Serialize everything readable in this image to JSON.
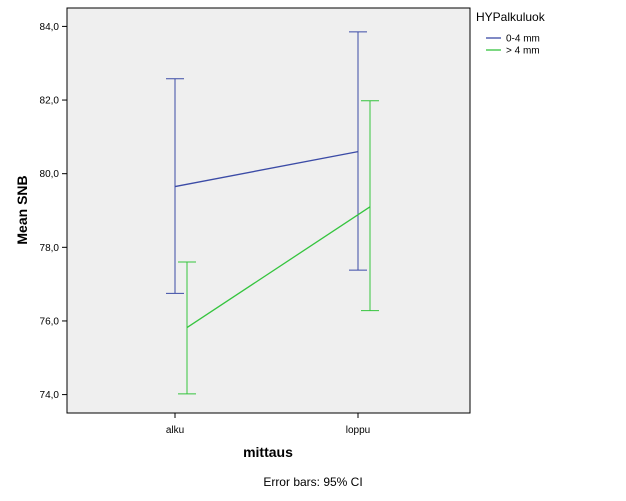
{
  "chart_data": {
    "type": "line",
    "xlabel": "mittaus",
    "ylabel": "Mean SNB",
    "categories": [
      "alku",
      "loppu"
    ],
    "ylim": [
      73.5,
      84.5
    ],
    "yticks": [
      74,
      76,
      78,
      80,
      82,
      84
    ],
    "ytick_labels": [
      "74,0",
      "76,0",
      "78,0",
      "80,0",
      "82,0",
      "84,0"
    ],
    "grid": false,
    "legend": {
      "title": "HYPalkuluok",
      "placement": "right"
    },
    "series": [
      {
        "name": "0-4 mm",
        "color": "#3b4ba6",
        "means": [
          79.65,
          80.6
        ],
        "ci_low": [
          76.75,
          77.38
        ],
        "ci_high": [
          82.58,
          83.85
        ]
      },
      {
        "name": "> 4 mm",
        "color": "#35c43e",
        "means": [
          75.82,
          79.1
        ],
        "ci_low": [
          74.02,
          76.28
        ],
        "ci_high": [
          77.6,
          81.98
        ]
      }
    ],
    "footnote": "Error bars: 95% CI",
    "plot_background": "#efefef"
  }
}
